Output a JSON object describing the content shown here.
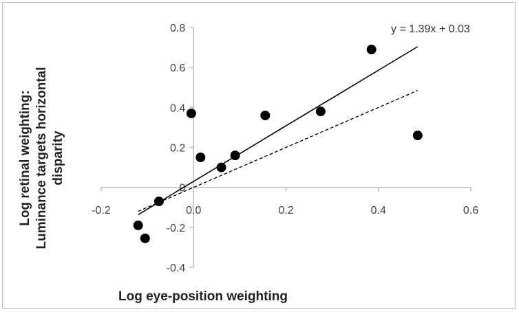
{
  "chart_data": {
    "type": "scatter",
    "title": "",
    "xlabel": "Log eye-position weighting",
    "ylabel_lines": [
      "Log retinal weighting:",
      "Luminance targets horizontal",
      "disparity"
    ],
    "xlim": [
      -0.2,
      0.6
    ],
    "ylim": [
      -0.4,
      0.8
    ],
    "x_ticks": [
      -0.2,
      0.0,
      0.2,
      0.4,
      0.6
    ],
    "x_tick_labels": [
      "-0.2",
      "0.0",
      "0.2",
      "0.4",
      "0.6"
    ],
    "y_ticks": [
      -0.4,
      -0.2,
      0,
      0.2,
      0.4,
      0.6,
      0.8
    ],
    "y_tick_labels": [
      "-0.4",
      "-0.2",
      "0",
      "0.2",
      "0.4",
      "0.6",
      "0.8"
    ],
    "grid": false,
    "legend": "none",
    "points": [
      {
        "x": -0.12,
        "y": -0.19
      },
      {
        "x": -0.105,
        "y": -0.255
      },
      {
        "x": -0.075,
        "y": -0.07
      },
      {
        "x": -0.005,
        "y": 0.37
      },
      {
        "x": 0.015,
        "y": 0.15
      },
      {
        "x": 0.06,
        "y": 0.1
      },
      {
        "x": 0.09,
        "y": 0.16
      },
      {
        "x": 0.155,
        "y": 0.36
      },
      {
        "x": 0.275,
        "y": 0.38
      },
      {
        "x": 0.385,
        "y": 0.69
      },
      {
        "x": 0.485,
        "y": 0.26
      }
    ],
    "fit_line": {
      "equation": "y = 1.39x + 0.03",
      "slope": 1.39,
      "intercept": 0.03,
      "x_range": [
        -0.12,
        0.485
      ],
      "style": "solid"
    },
    "reference_line": {
      "slope": 1.0,
      "intercept": 0.0,
      "x_range": [
        -0.12,
        0.485
      ],
      "style": "dashed"
    },
    "colors": {
      "points": "#000000",
      "lines": "#000000",
      "axes": "#bfbfbf"
    }
  }
}
